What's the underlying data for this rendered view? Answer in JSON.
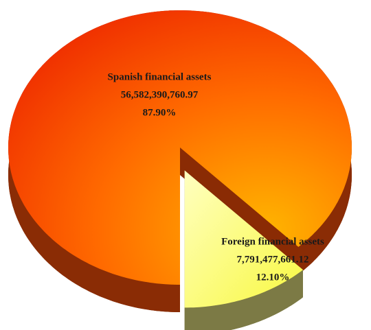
{
  "chart_data": {
    "type": "pie",
    "categories": [
      "Spanish financial assets",
      "Foreign financial assets"
    ],
    "values": [
      56582390760.97,
      7791477661.12
    ],
    "value_labels": [
      "56,582,390,760.97",
      "7,791,477,661.12"
    ],
    "percent_labels": [
      "87.90%",
      "12.10%"
    ],
    "colors": [
      "#ff5a00",
      "#ffff70"
    ],
    "side_colors": [
      "#8a2c05",
      "#7c7a45"
    ],
    "exploded": [
      false,
      true
    ]
  }
}
